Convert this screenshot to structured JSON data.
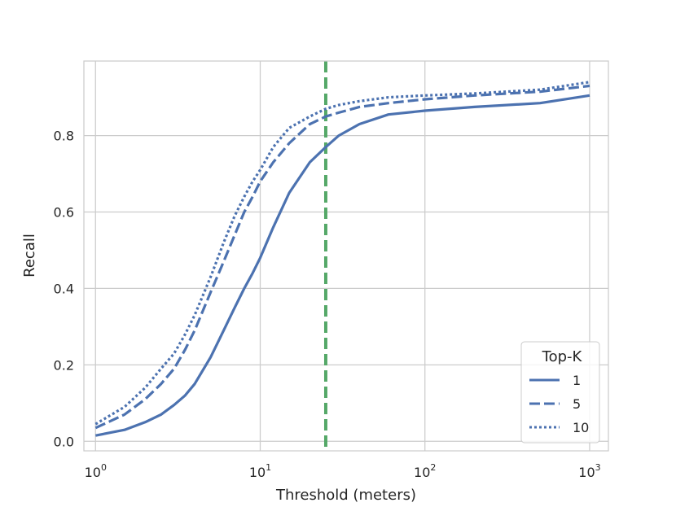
{
  "chart_data": {
    "type": "line",
    "title": "",
    "xlabel": "Threshold (meters)",
    "ylabel": "Recall",
    "xscale": "log",
    "xlim": [
      0.85,
      1300
    ],
    "ylim": [
      -0.025,
      0.995
    ],
    "xticks": [
      {
        "value": 1,
        "base": "10",
        "exp": "0"
      },
      {
        "value": 10,
        "base": "10",
        "exp": "1"
      },
      {
        "value": 100,
        "base": "10",
        "exp": "2"
      },
      {
        "value": 1000,
        "base": "10",
        "exp": "3"
      }
    ],
    "yticks": [
      {
        "value": 0.0,
        "label": "0.0"
      },
      {
        "value": 0.2,
        "label": "0.2"
      },
      {
        "value": 0.4,
        "label": "0.4"
      },
      {
        "value": 0.6,
        "label": "0.6"
      },
      {
        "value": 0.8,
        "label": "0.8"
      }
    ],
    "grid": true,
    "legend": {
      "title": "Top-K",
      "placement": "bottom-right"
    },
    "threshold_line": {
      "x": 25,
      "color": "#55a868"
    },
    "series": [
      {
        "name": "1",
        "style": "solid",
        "color": "#4c72b0",
        "x": [
          1,
          1.5,
          2,
          2.5,
          3,
          3.5,
          4,
          5,
          6,
          7,
          8,
          9,
          10,
          12,
          15,
          20,
          25,
          30,
          40,
          60,
          100,
          200,
          500,
          1000
        ],
        "y": [
          0.015,
          0.03,
          0.05,
          0.07,
          0.095,
          0.12,
          0.15,
          0.22,
          0.29,
          0.35,
          0.4,
          0.44,
          0.48,
          0.56,
          0.65,
          0.73,
          0.77,
          0.8,
          0.83,
          0.855,
          0.865,
          0.875,
          0.885,
          0.905
        ]
      },
      {
        "name": "5",
        "style": "dashed",
        "color": "#4c72b0",
        "x": [
          1,
          1.5,
          2,
          2.5,
          3,
          3.5,
          4,
          5,
          6,
          7,
          8,
          9,
          10,
          12,
          15,
          20,
          25,
          30,
          40,
          60,
          100,
          200,
          500,
          1000
        ],
        "y": [
          0.035,
          0.07,
          0.11,
          0.15,
          0.19,
          0.24,
          0.29,
          0.39,
          0.47,
          0.54,
          0.6,
          0.64,
          0.68,
          0.73,
          0.78,
          0.83,
          0.85,
          0.86,
          0.875,
          0.885,
          0.895,
          0.905,
          0.915,
          0.93
        ]
      },
      {
        "name": "10",
        "style": "dotted",
        "color": "#4c72b0",
        "x": [
          1,
          1.5,
          2,
          2.5,
          3,
          3.5,
          4,
          5,
          6,
          7,
          8,
          9,
          10,
          12,
          15,
          20,
          25,
          30,
          40,
          60,
          100,
          200,
          500,
          1000
        ],
        "y": [
          0.045,
          0.09,
          0.14,
          0.19,
          0.23,
          0.28,
          0.33,
          0.43,
          0.52,
          0.59,
          0.64,
          0.68,
          0.71,
          0.77,
          0.82,
          0.85,
          0.87,
          0.88,
          0.89,
          0.9,
          0.905,
          0.91,
          0.92,
          0.94
        ]
      }
    ]
  }
}
